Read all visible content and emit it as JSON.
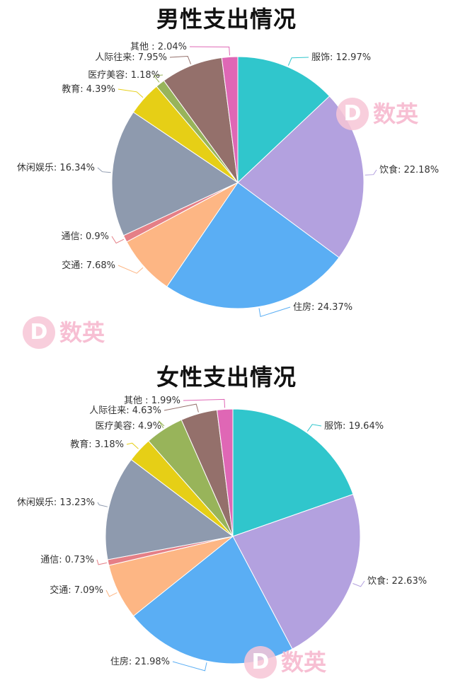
{
  "watermark": {
    "letter": "D",
    "text": "数英"
  },
  "chart_data": [
    {
      "type": "pie",
      "title": "男性支出情况",
      "slices": [
        {
          "label": "服饰",
          "value": 12.97,
          "display": "服饰: 12.97%",
          "color": "#30c6cc"
        },
        {
          "label": "饮食",
          "value": 22.18,
          "display": "饮食: 22.18%",
          "color": "#b3a1df"
        },
        {
          "label": "住房",
          "value": 24.37,
          "display": "住房: 24.37%",
          "color": "#5aaef4"
        },
        {
          "label": "交通",
          "value": 7.68,
          "display": "交通: 7.68%",
          "color": "#fdb684"
        },
        {
          "label": "通信",
          "value": 0.9,
          "display": "通信: 0.9%",
          "color": "#e57f86"
        },
        {
          "label": "休闲娱乐",
          "value": 16.34,
          "display": "休闲娱乐: 16.34%",
          "color": "#8e9aae"
        },
        {
          "label": "教育",
          "value": 4.39,
          "display": "教育: 4.39%",
          "color": "#e6cf16"
        },
        {
          "label": "医疗美容",
          "value": 1.18,
          "display": "医疗美容: 1.18%",
          "color": "#98b45a"
        },
        {
          "label": "人际往来",
          "value": 7.95,
          "display": "人际往来: 7.95%",
          "color": "#94706b"
        },
        {
          "label": "其他",
          "value": 2.04,
          "display": "其他  : 2.04%",
          "color": "#df67b5"
        }
      ]
    },
    {
      "type": "pie",
      "title": "女性支出情况",
      "slices": [
        {
          "label": "服饰",
          "value": 19.64,
          "display": "服饰: 19.64%",
          "color": "#30c6cc"
        },
        {
          "label": "饮食",
          "value": 22.63,
          "display": "饮食: 22.63%",
          "color": "#b3a1df"
        },
        {
          "label": "住房",
          "value": 21.98,
          "display": "住房: 21.98%",
          "color": "#5aaef4"
        },
        {
          "label": "交通",
          "value": 7.09,
          "display": "交通: 7.09%",
          "color": "#fdb684"
        },
        {
          "label": "通信",
          "value": 0.73,
          "display": "通信: 0.73%",
          "color": "#e57f86"
        },
        {
          "label": "休闲娱乐",
          "value": 13.23,
          "display": "休闲娱乐: 13.23%",
          "color": "#8e9aae"
        },
        {
          "label": "教育",
          "value": 3.18,
          "display": "教育: 3.18%",
          "color": "#e6cf16"
        },
        {
          "label": "医疗美容",
          "value": 4.9,
          "display": "医疗美容: 4.9%",
          "color": "#98b45a"
        },
        {
          "label": "人际往来",
          "value": 4.63,
          "display": "人际往来: 4.63%",
          "color": "#94706b"
        },
        {
          "label": "其他",
          "value": 1.99,
          "display": "其他  : 1.99%",
          "color": "#df67b5"
        }
      ]
    }
  ]
}
